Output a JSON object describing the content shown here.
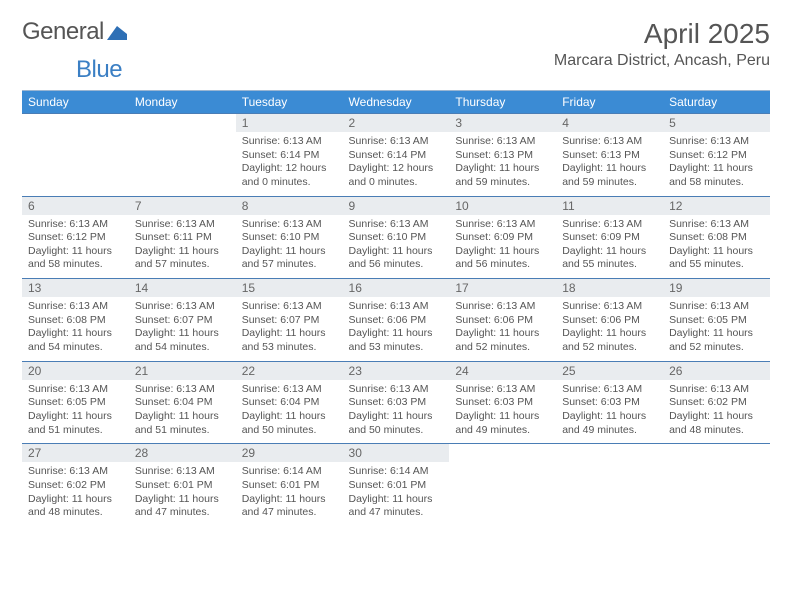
{
  "logo": {
    "general": "General",
    "blue": "Blue"
  },
  "title": "April 2025",
  "location": "Marcara District, Ancash, Peru",
  "colors": {
    "header_bg": "#3b8bd4",
    "header_text": "#ffffff",
    "daynum_bg": "#e9ecef",
    "row_border": "#4a7db5",
    "text": "#555555",
    "logo_blue": "#3b7fc4"
  },
  "weekdays": [
    "Sunday",
    "Monday",
    "Tuesday",
    "Wednesday",
    "Thursday",
    "Friday",
    "Saturday"
  ],
  "weeks": [
    [
      null,
      null,
      {
        "n": "1",
        "sr": "Sunrise: 6:13 AM",
        "ss": "Sunset: 6:14 PM",
        "dl": "Daylight: 12 hours and 0 minutes."
      },
      {
        "n": "2",
        "sr": "Sunrise: 6:13 AM",
        "ss": "Sunset: 6:14 PM",
        "dl": "Daylight: 12 hours and 0 minutes."
      },
      {
        "n": "3",
        "sr": "Sunrise: 6:13 AM",
        "ss": "Sunset: 6:13 PM",
        "dl": "Daylight: 11 hours and 59 minutes."
      },
      {
        "n": "4",
        "sr": "Sunrise: 6:13 AM",
        "ss": "Sunset: 6:13 PM",
        "dl": "Daylight: 11 hours and 59 minutes."
      },
      {
        "n": "5",
        "sr": "Sunrise: 6:13 AM",
        "ss": "Sunset: 6:12 PM",
        "dl": "Daylight: 11 hours and 58 minutes."
      }
    ],
    [
      {
        "n": "6",
        "sr": "Sunrise: 6:13 AM",
        "ss": "Sunset: 6:12 PM",
        "dl": "Daylight: 11 hours and 58 minutes."
      },
      {
        "n": "7",
        "sr": "Sunrise: 6:13 AM",
        "ss": "Sunset: 6:11 PM",
        "dl": "Daylight: 11 hours and 57 minutes."
      },
      {
        "n": "8",
        "sr": "Sunrise: 6:13 AM",
        "ss": "Sunset: 6:10 PM",
        "dl": "Daylight: 11 hours and 57 minutes."
      },
      {
        "n": "9",
        "sr": "Sunrise: 6:13 AM",
        "ss": "Sunset: 6:10 PM",
        "dl": "Daylight: 11 hours and 56 minutes."
      },
      {
        "n": "10",
        "sr": "Sunrise: 6:13 AM",
        "ss": "Sunset: 6:09 PM",
        "dl": "Daylight: 11 hours and 56 minutes."
      },
      {
        "n": "11",
        "sr": "Sunrise: 6:13 AM",
        "ss": "Sunset: 6:09 PM",
        "dl": "Daylight: 11 hours and 55 minutes."
      },
      {
        "n": "12",
        "sr": "Sunrise: 6:13 AM",
        "ss": "Sunset: 6:08 PM",
        "dl": "Daylight: 11 hours and 55 minutes."
      }
    ],
    [
      {
        "n": "13",
        "sr": "Sunrise: 6:13 AM",
        "ss": "Sunset: 6:08 PM",
        "dl": "Daylight: 11 hours and 54 minutes."
      },
      {
        "n": "14",
        "sr": "Sunrise: 6:13 AM",
        "ss": "Sunset: 6:07 PM",
        "dl": "Daylight: 11 hours and 54 minutes."
      },
      {
        "n": "15",
        "sr": "Sunrise: 6:13 AM",
        "ss": "Sunset: 6:07 PM",
        "dl": "Daylight: 11 hours and 53 minutes."
      },
      {
        "n": "16",
        "sr": "Sunrise: 6:13 AM",
        "ss": "Sunset: 6:06 PM",
        "dl": "Daylight: 11 hours and 53 minutes."
      },
      {
        "n": "17",
        "sr": "Sunrise: 6:13 AM",
        "ss": "Sunset: 6:06 PM",
        "dl": "Daylight: 11 hours and 52 minutes."
      },
      {
        "n": "18",
        "sr": "Sunrise: 6:13 AM",
        "ss": "Sunset: 6:06 PM",
        "dl": "Daylight: 11 hours and 52 minutes."
      },
      {
        "n": "19",
        "sr": "Sunrise: 6:13 AM",
        "ss": "Sunset: 6:05 PM",
        "dl": "Daylight: 11 hours and 52 minutes."
      }
    ],
    [
      {
        "n": "20",
        "sr": "Sunrise: 6:13 AM",
        "ss": "Sunset: 6:05 PM",
        "dl": "Daylight: 11 hours and 51 minutes."
      },
      {
        "n": "21",
        "sr": "Sunrise: 6:13 AM",
        "ss": "Sunset: 6:04 PM",
        "dl": "Daylight: 11 hours and 51 minutes."
      },
      {
        "n": "22",
        "sr": "Sunrise: 6:13 AM",
        "ss": "Sunset: 6:04 PM",
        "dl": "Daylight: 11 hours and 50 minutes."
      },
      {
        "n": "23",
        "sr": "Sunrise: 6:13 AM",
        "ss": "Sunset: 6:03 PM",
        "dl": "Daylight: 11 hours and 50 minutes."
      },
      {
        "n": "24",
        "sr": "Sunrise: 6:13 AM",
        "ss": "Sunset: 6:03 PM",
        "dl": "Daylight: 11 hours and 49 minutes."
      },
      {
        "n": "25",
        "sr": "Sunrise: 6:13 AM",
        "ss": "Sunset: 6:03 PM",
        "dl": "Daylight: 11 hours and 49 minutes."
      },
      {
        "n": "26",
        "sr": "Sunrise: 6:13 AM",
        "ss": "Sunset: 6:02 PM",
        "dl": "Daylight: 11 hours and 48 minutes."
      }
    ],
    [
      {
        "n": "27",
        "sr": "Sunrise: 6:13 AM",
        "ss": "Sunset: 6:02 PM",
        "dl": "Daylight: 11 hours and 48 minutes."
      },
      {
        "n": "28",
        "sr": "Sunrise: 6:13 AM",
        "ss": "Sunset: 6:01 PM",
        "dl": "Daylight: 11 hours and 47 minutes."
      },
      {
        "n": "29",
        "sr": "Sunrise: 6:14 AM",
        "ss": "Sunset: 6:01 PM",
        "dl": "Daylight: 11 hours and 47 minutes."
      },
      {
        "n": "30",
        "sr": "Sunrise: 6:14 AM",
        "ss": "Sunset: 6:01 PM",
        "dl": "Daylight: 11 hours and 47 minutes."
      },
      null,
      null,
      null
    ]
  ]
}
